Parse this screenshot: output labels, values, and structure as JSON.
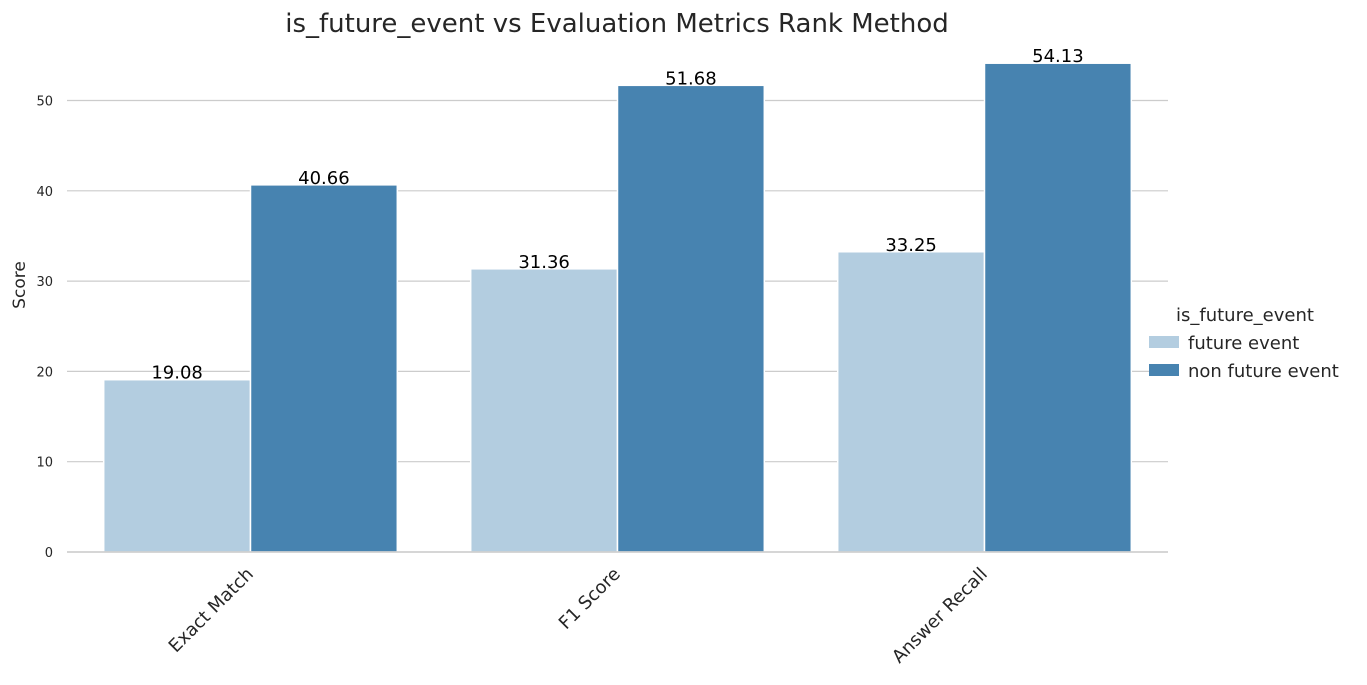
{
  "chart_data": {
    "type": "bar",
    "title": "is_future_event vs Evaluation Metrics Rank Method",
    "xlabel": "",
    "ylabel": "Score",
    "categories": [
      "Exact Match",
      "F1 Score",
      "Answer Recall"
    ],
    "series": [
      {
        "name": "future event",
        "values": [
          19.08,
          31.36,
          33.25
        ],
        "color": "#b3cde0"
      },
      {
        "name": "non future event",
        "values": [
          40.66,
          51.68,
          54.13
        ],
        "color": "#4783b0"
      }
    ],
    "ylim": [
      0,
      54.13
    ],
    "yticks": [
      "0",
      "10",
      "20",
      "30",
      "40",
      "50"
    ],
    "grid": "horizontal",
    "legend": {
      "title": "is_future_event",
      "placement": "center-right"
    },
    "data_labels": [
      [
        "19.08",
        "31.36",
        "33.25"
      ],
      [
        "40.66",
        "51.68",
        "54.13"
      ]
    ]
  }
}
